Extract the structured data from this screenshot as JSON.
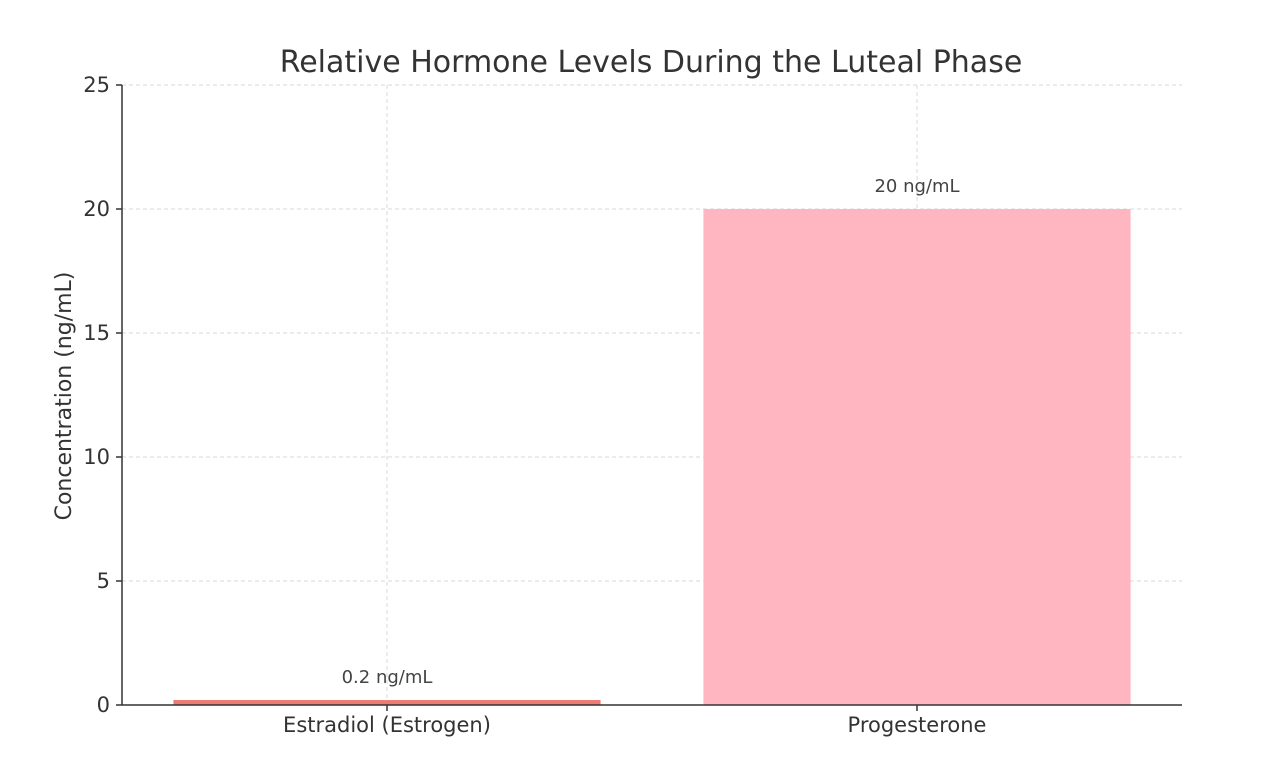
{
  "chart_data": {
    "type": "bar",
    "title": "Relative Hormone Levels During the Luteal Phase",
    "xlabel": "",
    "ylabel": "Concentration (ng/mL)",
    "categories": [
      "Estradiol (Estrogen)",
      "Progesterone"
    ],
    "values": [
      0.2,
      20
    ],
    "data_labels": [
      "0.2 ng/mL",
      "20 ng/mL"
    ],
    "bar_colors": [
      "#ee7b72",
      "#ffb6c1"
    ],
    "ylim": [
      0,
      25
    ],
    "yticks": [
      0,
      5,
      10,
      15,
      20,
      25
    ],
    "grid": true,
    "legend": "none"
  }
}
